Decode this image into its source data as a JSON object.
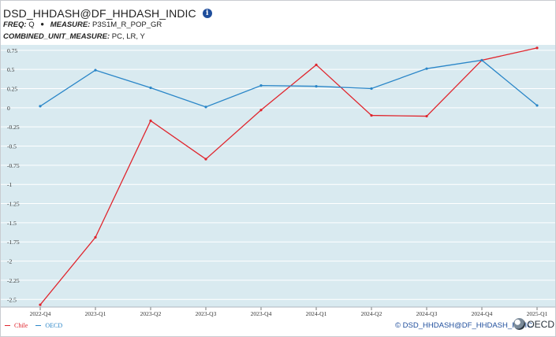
{
  "header": {
    "title": "DSD_HHDASH@DF_HHDASH_INDIC",
    "info_glyph": "i",
    "freq_label": "FREQ:",
    "freq_value": "Q",
    "measure_label": "MEASURE:",
    "measure_value": "P3S1M_R_POP_GR",
    "unit_label": "COMBINED_UNIT_MEASURE:",
    "unit_value": "PC, LR, Y"
  },
  "footer": {
    "source_text": "© DSD_HHDASH@DF_HHDASH_INDIC",
    "logo_text": "OECD"
  },
  "colors": {
    "plot_background": "#d9eaf0",
    "grid": "#ffffff",
    "chile": "#e0252d",
    "oecd": "#2a86c8"
  },
  "chart_data": {
    "type": "line",
    "categories": [
      "2022-Q4",
      "2023-Q1",
      "2023-Q2",
      "2023-Q3",
      "2023-Q4",
      "2024-Q1",
      "2024-Q2",
      "2024-Q3",
      "2024-Q4",
      "2025-Q1"
    ],
    "y_ticks": [
      0.75,
      0.5,
      0.25,
      0,
      -0.25,
      -0.5,
      -0.75,
      -1,
      -1.25,
      -1.5,
      -1.75,
      -2,
      -2.25,
      -2.5
    ],
    "y_tick_labels": [
      "0.75",
      "0.5",
      "0.25",
      "0",
      "-0.25",
      "-0.5",
      "-0.75",
      "-1",
      "-1.25",
      "-1.5",
      "-1.75",
      "-2",
      "-2.25",
      "-2.5"
    ],
    "ylim": [
      -2.6,
      0.82
    ],
    "grid": true,
    "legend_position": "bottom-left",
    "series": [
      {
        "name": "Chile",
        "color": "#e0252d",
        "values": [
          -2.57,
          -1.69,
          -0.17,
          -0.67,
          -0.03,
          0.56,
          -0.1,
          -0.11,
          0.62,
          0.78
        ]
      },
      {
        "name": "OECD",
        "color": "#2a86c8",
        "values": [
          0.02,
          0.49,
          0.26,
          0.01,
          0.29,
          0.28,
          0.25,
          0.51,
          0.62,
          0.03
        ]
      }
    ]
  }
}
